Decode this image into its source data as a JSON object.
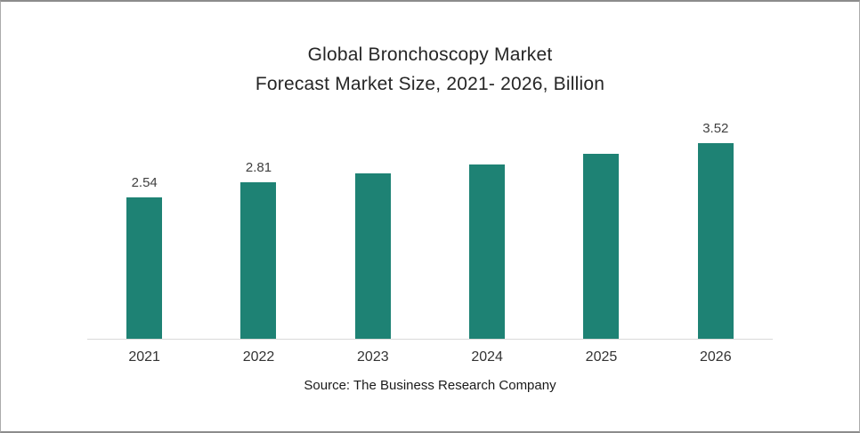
{
  "chart": {
    "title_line1": "Global Bronchoscopy Market",
    "title_line2": "Forecast Market Size, 2021- 2026, Billion",
    "source": "Source: The Business Research Company"
  },
  "chart_data": {
    "type": "bar",
    "title": "Global Bronchoscopy Market Forecast Market Size, 2021- 2026, Billion",
    "categories": [
      "2021",
      "2022",
      "2023",
      "2024",
      "2025",
      "2026"
    ],
    "values": [
      2.54,
      2.81,
      2.97,
      3.14,
      3.33,
      3.52
    ],
    "data_labels": [
      "2.54",
      "2.81",
      "",
      "",
      "",
      "3.52"
    ],
    "xlabel": "",
    "ylabel": "",
    "ylim": [
      0,
      4
    ],
    "grid": false,
    "legend": false,
    "bar_color": "#1E8274",
    "axis_line_color": "#D9D9D9",
    "source_text": "Source: The Business Research Company"
  }
}
